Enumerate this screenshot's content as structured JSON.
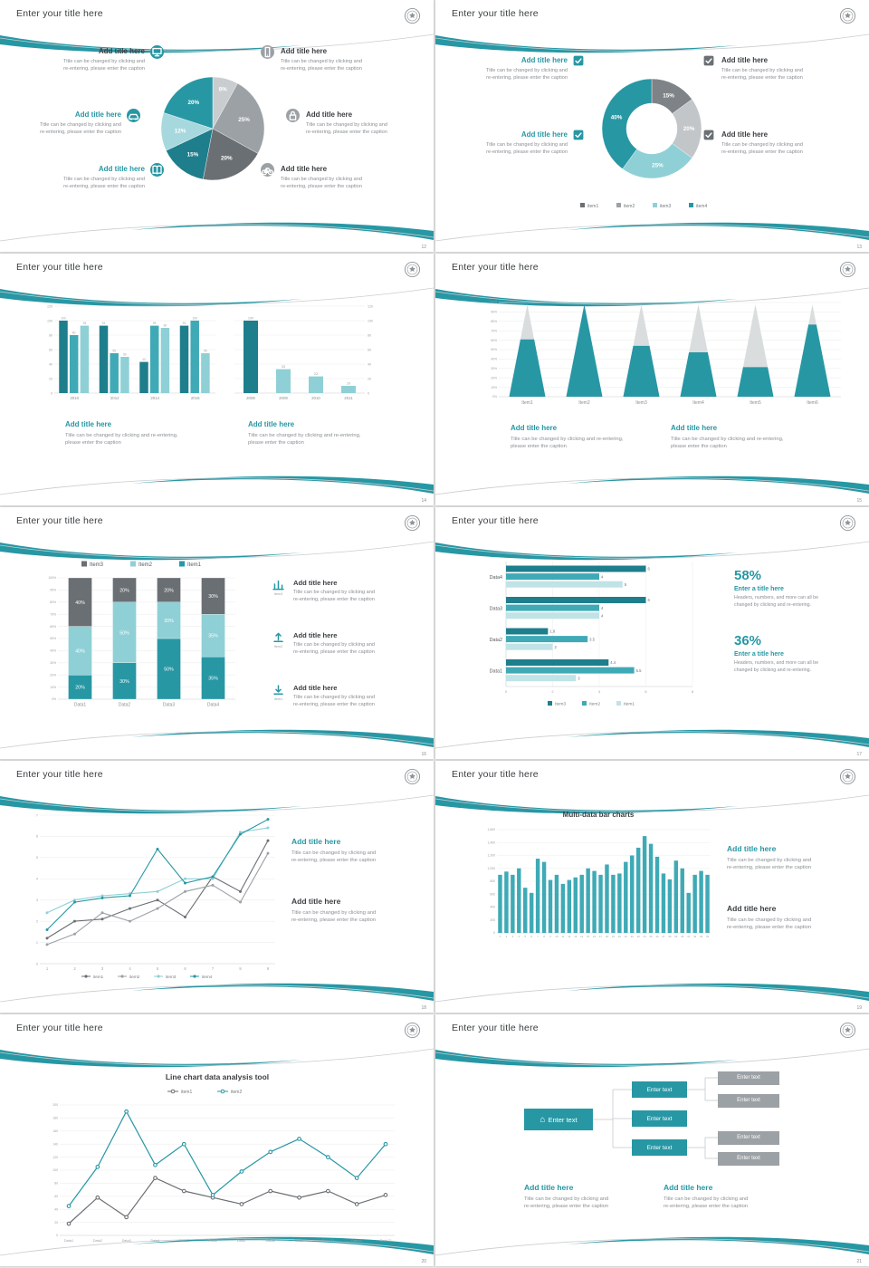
{
  "common": {
    "slide_title": "Enter your title here",
    "add_title": "Add title here",
    "enter_title": "Enter a title here",
    "caption_a": [
      "Title can be changed by clicking and",
      "re-entering, please enter the caption"
    ],
    "caption_b": [
      "Title can be changed by clicking and re-entering,",
      "please enter the caption"
    ],
    "caption_stats": [
      "Headers, numbers, and more can all be",
      "changed by clicking and re-entering."
    ],
    "colors": {
      "teal": "#2797A4",
      "teal_dark": "#1E7E8C",
      "teal_mid": "#3FAAB6",
      "teal_light": "#8FD0D6",
      "teal_pale": "#A7D8DD",
      "teal_pale2": "#BFE3E6",
      "gray_dark": "#6A6F73",
      "gray_dark2": "#7E8387",
      "gray_mid": "#9CA1A5",
      "gray_light": "#C9CDD0",
      "gray_light2": "#C2C6C9",
      "text": "#3C4043",
      "caption": "#8A8F93"
    }
  },
  "slides": [
    {
      "page": "12",
      "type": "pie",
      "chart_data": {
        "type": "pie",
        "values": [
          8,
          25,
          20,
          15,
          12,
          20
        ],
        "labels": [
          "8%",
          "25%",
          "20%",
          "15%",
          "12%",
          "20%"
        ],
        "colors": [
          "gray_light",
          "gray_mid",
          "gray_dark",
          "teal_dark",
          "teal_pale",
          "teal"
        ]
      },
      "items": [
        {
          "icon": "monitor",
          "icon_color": "teal",
          "title_color": "dark"
        },
        {
          "icon": "car",
          "icon_color": "teal",
          "title_color": "teal"
        },
        {
          "icon": "book",
          "icon_color": "teal",
          "title_color": "teal"
        },
        {
          "icon": "phone",
          "icon_color": "gray",
          "title_color": "dark"
        },
        {
          "icon": "lock",
          "icon_color": "gray",
          "title_color": "dark"
        },
        {
          "icon": "bike",
          "icon_color": "gray",
          "title_color": "dark"
        }
      ]
    },
    {
      "page": "13",
      "type": "donut",
      "chart_data": {
        "type": "donut",
        "values": [
          15,
          20,
          25,
          40
        ],
        "labels": [
          "15%",
          "20%",
          "25%",
          "40%"
        ],
        "colors": [
          "gray_dark2",
          "gray_light2",
          "teal_light",
          "teal"
        ],
        "legend": [
          {
            "label": "item1",
            "color": "gray_dark"
          },
          {
            "label": "item2",
            "color": "gray_mid"
          },
          {
            "label": "item3",
            "color": "teal_light"
          },
          {
            "label": "item4",
            "color": "teal"
          }
        ]
      },
      "items": [
        {
          "title_color": "teal",
          "check_color": "teal"
        },
        {
          "title_color": "teal",
          "check_color": "teal"
        },
        {
          "title_color": "dark",
          "check_color": "gray_dark"
        },
        {
          "title_color": "dark",
          "check_color": "gray_dark"
        }
      ]
    },
    {
      "page": "14",
      "type": "bars2",
      "chart_data": [
        {
          "type": "bar",
          "categories": [
            "2010",
            "2012",
            "2014",
            "2016"
          ],
          "series": [
            {
              "name": "series1",
              "values": [
                100,
                93,
                43,
                93
              ]
            },
            {
              "name": "series2",
              "values": [
                80,
                55,
                93,
                100
              ]
            },
            {
              "name": "series3",
              "values": [
                93,
                50,
                90,
                55
              ]
            }
          ],
          "ylim": [
            0,
            120
          ],
          "ytick_step": 20
        },
        {
          "type": "bar",
          "categories": [
            "2008",
            "2009",
            "2010",
            "2011"
          ],
          "values": [
            100,
            33,
            23,
            10
          ],
          "ylim": [
            0,
            120
          ],
          "ytick_step": 20
        }
      ],
      "captions": [
        {
          "title_color": "teal"
        },
        {
          "title_color": "teal"
        }
      ]
    },
    {
      "page": "15",
      "type": "cones",
      "chart_data": {
        "type": "cone",
        "categories": [
          "Item1",
          "Item2",
          "Item3",
          "Item4",
          "Item5",
          "Item6"
        ],
        "teal_pct": [
          62,
          100,
          55,
          48,
          32,
          78
        ],
        "ylim": [
          0,
          100
        ],
        "ytick_step": 10
      },
      "captions": [
        {
          "title_color": "teal"
        },
        {
          "title_color": "teal"
        }
      ]
    },
    {
      "page": "16",
      "type": "stacked",
      "chart_data": {
        "type": "stacked-bar",
        "categories": [
          "Data1",
          "Data2",
          "Data3",
          "Data4"
        ],
        "series": [
          {
            "name": "Item1",
            "color": "teal",
            "values": [
              20,
              30,
              50,
              35
            ]
          },
          {
            "name": "Item2",
            "color": "teal_light",
            "values": [
              40,
              50,
              30,
              35
            ]
          },
          {
            "name": "Item3",
            "color": "gray_dark",
            "values": [
              40,
              20,
              20,
              30
            ]
          }
        ],
        "legend_order": [
          "Item3",
          "Item2",
          "Item1"
        ],
        "ylim": [
          0,
          100
        ],
        "ytick_step": 10
      },
      "items": [
        {
          "icon": "chart",
          "sub": "Item3"
        },
        {
          "icon": "upload",
          "sub": "Item2"
        },
        {
          "icon": "download",
          "sub": "Item1"
        }
      ]
    },
    {
      "page": "17",
      "type": "hbar",
      "chart_data": {
        "type": "hbar",
        "categories": [
          "Data4",
          "Data3",
          "Data2",
          "Data1"
        ],
        "series": [
          {
            "name": "Item3",
            "color": "teal_dark",
            "values": [
              6,
              6,
              1.8,
              4.4
            ]
          },
          {
            "name": "Item2",
            "color": "teal_mid",
            "values": [
              4,
              4,
              3.5,
              5.5
            ]
          },
          {
            "name": "Item1",
            "color": "teal_pale2",
            "values": [
              5,
              4,
              2,
              3
            ]
          }
        ],
        "xlim": [
          0,
          8
        ],
        "xticks": [
          0,
          2,
          4,
          6,
          8
        ]
      },
      "stats": [
        {
          "value": "58%"
        },
        {
          "value": "36%"
        }
      ]
    },
    {
      "page": "18",
      "type": "lines",
      "chart_data": {
        "type": "line",
        "x": [
          "1",
          "2",
          "3",
          "4",
          "5",
          "6",
          "7",
          "8",
          "9"
        ],
        "ylim": [
          0,
          7
        ],
        "series": [
          {
            "name": "item1",
            "color": "gray_dark",
            "values": [
              1.2,
              2.0,
              2.1,
              2.6,
              3.0,
              2.2,
              4.1,
              3.4,
              5.8
            ]
          },
          {
            "name": "item2",
            "color": "gray_mid",
            "values": [
              0.9,
              1.4,
              2.4,
              2.0,
              2.6,
              3.4,
              3.7,
              2.9,
              5.2
            ]
          },
          {
            "name": "item3",
            "color": "teal_light",
            "values": [
              2.4,
              3.0,
              3.2,
              3.3,
              3.4,
              4.0,
              4.0,
              6.2,
              6.4
            ]
          },
          {
            "name": "item4",
            "color": "teal",
            "values": [
              1.6,
              2.9,
              3.1,
              3.2,
              5.4,
              3.8,
              4.1,
              6.1,
              6.8
            ]
          }
        ]
      },
      "captions": [
        {
          "title_color": "teal"
        },
        {
          "title_color": "dark"
        }
      ]
    },
    {
      "page": "19",
      "type": "multibar",
      "chart_data": {
        "type": "bar",
        "title": "Multi-data bar charts",
        "ylim": [
          0,
          1600
        ],
        "ytick_step": 200,
        "values": [
          900,
          950,
          900,
          1000,
          700,
          620,
          1150,
          1100,
          820,
          900,
          760,
          820,
          860,
          900,
          1000,
          960,
          900,
          1060,
          900,
          920,
          1100,
          1200,
          1320,
          1500,
          1380,
          1180,
          920,
          830,
          1120,
          1000,
          620,
          900,
          960,
          900
        ]
      },
      "captions": [
        {
          "title_color": "teal"
        },
        {
          "title_color": "dark"
        }
      ]
    },
    {
      "page": "20",
      "type": "lines2",
      "chart_data": {
        "type": "line",
        "title": "Line chart data analysis tool",
        "ylim": [
          0,
          200
        ],
        "ytick_step": 20,
        "categories": [
          "Data1",
          "Data2",
          "Data3",
          "Data4",
          "Data5",
          "Data6",
          "Data7",
          "Data8",
          "Data9",
          "Data10",
          "Data11",
          "Data12"
        ],
        "series": [
          {
            "name": "item1",
            "color": "gray_dark",
            "values": [
              18,
              58,
              28,
              88,
              68,
              58,
              48,
              68,
              58,
              68,
              48,
              62
            ]
          },
          {
            "name": "item2",
            "color": "teal",
            "values": [
              45,
              105,
              190,
              108,
              140,
              62,
              98,
              128,
              148,
              120,
              88,
              140
            ]
          }
        ]
      }
    },
    {
      "page": "21",
      "type": "flow",
      "flow": {
        "root_label": "Enter text",
        "mid_labels": [
          "Enter text",
          "Enter text",
          "Enter text"
        ],
        "leaf_labels": [
          "Enter text",
          "Enter text",
          "Enter text",
          "Enter text"
        ]
      },
      "captions": [
        {
          "title_color": "teal"
        },
        {
          "title_color": "teal"
        }
      ]
    }
  ]
}
